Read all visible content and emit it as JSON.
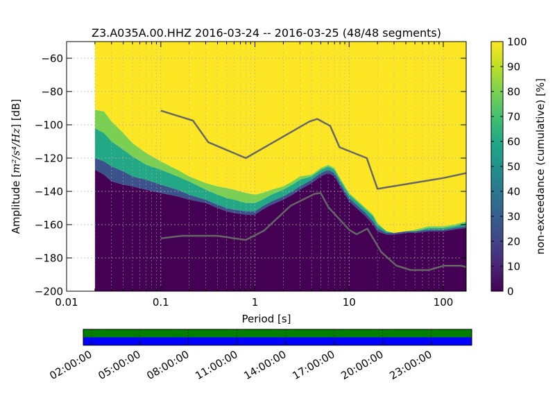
{
  "chart_data": [
    {
      "type": "heatmap",
      "title": "Z3.A035A.00.HHZ   2016-03-24 -- 2016-03-25  (48/48 segments)",
      "xlabel": "Period [s]",
      "ylabel": "Amplitude [m²/s⁴/Hz] [dB]",
      "ylabel_prefix": "Amplitude [",
      "ylabel_math": "m²/s⁴/Hz",
      "ylabel_suffix": "] [dB]",
      "x_scale": "log",
      "xlim": [
        0.01,
        175
      ],
      "ylim": [
        -200,
        -50
      ],
      "x_ticks": [
        0.01,
        0.1,
        1,
        10,
        100
      ],
      "x_tick_labels": [
        "0.01",
        "0.1",
        "1",
        "10",
        "100"
      ],
      "y_ticks": [
        -60,
        -80,
        -100,
        -120,
        -140,
        -160,
        -180,
        -200
      ],
      "y_tick_labels": [
        "−60",
        "−80",
        "−100",
        "−120",
        "−140",
        "−160",
        "−180",
        "−200"
      ],
      "grid": true,
      "data_period_range": [
        0.02,
        175
      ],
      "colorbar": {
        "label": "non-exceedance (cumulative) [%]",
        "range": [
          0,
          100
        ],
        "ticks": [
          0,
          10,
          20,
          30,
          40,
          50,
          60,
          70,
          80,
          90,
          100
        ],
        "tick_labels": [
          "0",
          "10",
          "20",
          "30",
          "40",
          "50",
          "60",
          "70",
          "80",
          "90",
          "100"
        ]
      },
      "distribution_bands": {
        "period": [
          0.02,
          0.025,
          0.03,
          0.04,
          0.05,
          0.07,
          0.1,
          0.15,
          0.2,
          0.3,
          0.4,
          0.5,
          0.6,
          0.8,
          1,
          1.2,
          1.5,
          2,
          2.5,
          3,
          4,
          5,
          6,
          7,
          8,
          10,
          12,
          15,
          18,
          20,
          25,
          30,
          40,
          50,
          70,
          100,
          130,
          175
        ],
        "p0": [
          -127,
          -130,
          -134,
          -136,
          -137,
          -139,
          -141,
          -143,
          -145,
          -147,
          -150,
          -152,
          -153,
          -154,
          -154,
          -151,
          -148,
          -145,
          -142,
          -139,
          -135,
          -131,
          -129,
          -131,
          -137,
          -146,
          -150,
          -155,
          -160,
          -164,
          -166,
          -166,
          -165,
          -165,
          -164,
          -164,
          -163,
          -162
        ],
        "p20": [
          -120,
          -122,
          -125,
          -128,
          -131,
          -133,
          -136,
          -139,
          -142,
          -145,
          -148,
          -150,
          -151,
          -152,
          -152,
          -149,
          -146,
          -143,
          -140,
          -137,
          -133,
          -129,
          -127,
          -129,
          -135,
          -144,
          -148,
          -153,
          -158,
          -162,
          -165,
          -165,
          -164,
          -164,
          -163,
          -163,
          -162,
          -161
        ],
        "p60": [
          -102,
          -105,
          -110,
          -115,
          -119,
          -124,
          -127,
          -131,
          -134,
          -139,
          -142,
          -144,
          -145,
          -147,
          -147,
          -145,
          -142,
          -139,
          -136,
          -133,
          -131,
          -127,
          -125,
          -127,
          -133,
          -142,
          -146,
          -151,
          -155,
          -160,
          -164,
          -165,
          -164,
          -164,
          -162,
          -162,
          -161,
          -159
        ],
        "p99": [
          -91,
          -92,
          -98,
          -105,
          -111,
          -117,
          -122,
          -127,
          -131,
          -135,
          -137,
          -138,
          -139,
          -141,
          -142,
          -141,
          -139,
          -137,
          -134,
          -131,
          -130,
          -126,
          -124,
          -126,
          -132,
          -141,
          -145,
          -150,
          -154,
          -159,
          -164,
          -165,
          -164,
          -163,
          -161,
          -161,
          -160,
          -158
        ]
      },
      "series": [
        {
          "name": "",
          "role": "upper reference model",
          "x": [
            0.1,
            0.22,
            0.32,
            0.8,
            3.8,
            4.6,
            6.3,
            7.9,
            15.4,
            20,
            100,
            175
          ],
          "y": [
            -91.5,
            -97.5,
            -110.5,
            -120,
            -98,
            -96.5,
            -100.7,
            -113.5,
            -120,
            -138.5,
            -132,
            -129
          ]
        },
        {
          "name": "",
          "role": "lower reference model",
          "x": [
            0.1,
            0.17,
            0.4,
            0.8,
            1.24,
            2.4,
            4.3,
            5,
            6,
            10,
            12,
            15.6,
            21.9,
            31.6,
            45,
            70,
            101,
            154,
            175
          ],
          "y": [
            -168.2,
            -166.7,
            -166.7,
            -169.2,
            -163.7,
            -148.6,
            -141.5,
            -141,
            -149.4,
            -163.1,
            -165.8,
            -162.4,
            -176.4,
            -184.6,
            -187.3,
            -187.3,
            -184.7,
            -184.7,
            -185.5
          ]
        }
      ]
    },
    {
      "type": "timeline",
      "bars": [
        {
          "color": "#007f00",
          "coverage": 1.0
        },
        {
          "color": "#0000ff",
          "coverage": 1.0
        }
      ],
      "time_ticks": [
        "02:00:00",
        "05:00:00",
        "08:00:00",
        "11:00:00",
        "14:00:00",
        "17:00:00",
        "20:00:00",
        "23:00:00"
      ]
    }
  ],
  "colors": {
    "model_line": "#666666",
    "grid": "#b0b0b0"
  }
}
